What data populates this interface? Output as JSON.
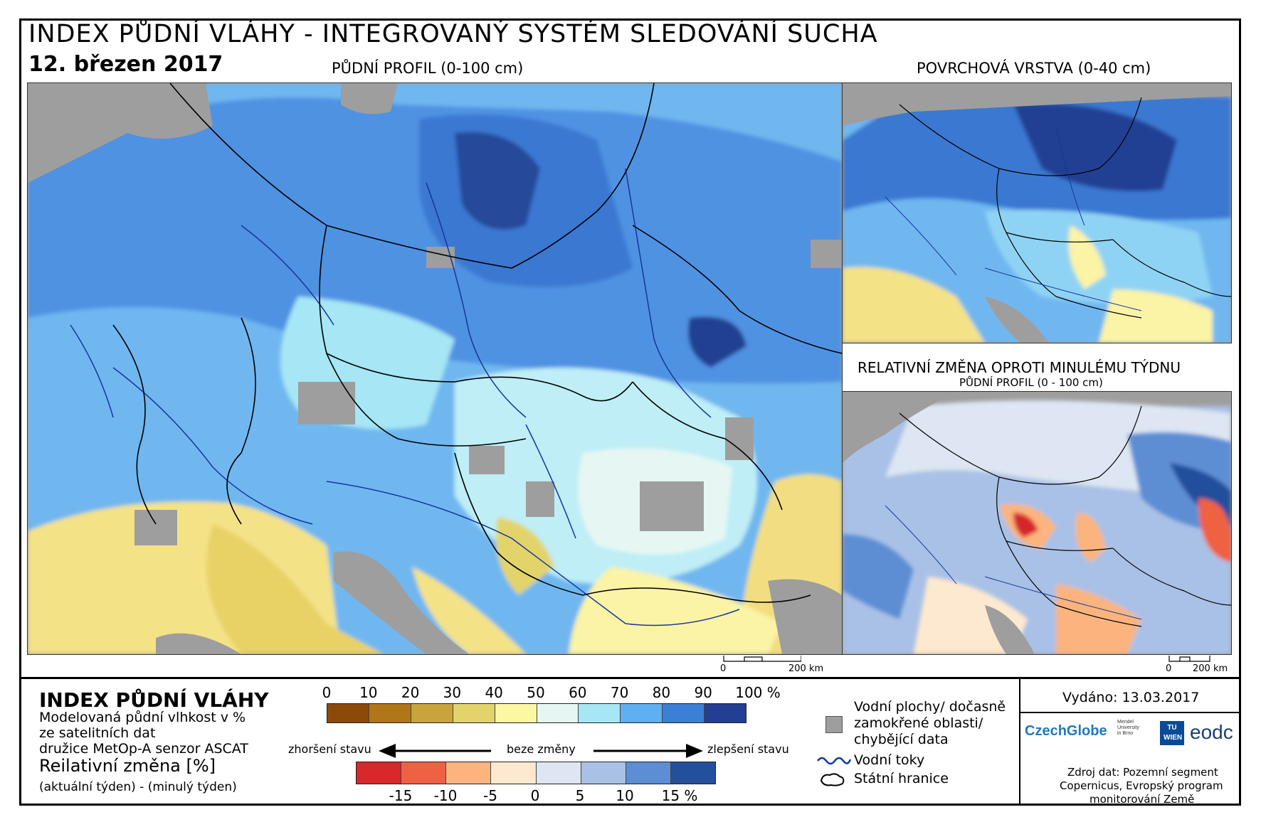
{
  "header": {
    "title": "INDEX PŮDNÍ VLÁHY - INTEGROVANÝ SYSTÉM SLEDOVÁNÍ SUCHA",
    "date": "12. březen 2017"
  },
  "maps": {
    "main_label": "PŮDNÍ PROFIL (0-100 cm)",
    "surface_label": "POVRCHOVÁ VRSTVA (0-40 cm)",
    "change_label": "RELATIVNÍ ZMĚNA OPROTI MINULÉMU TÝDNU",
    "change_sublabel": "PŮDNÍ PROFIL (0 - 100 cm)",
    "scale_main": {
      "zero": "0",
      "distance": "200 km"
    },
    "scale_change": {
      "zero": "0",
      "distance": "200 km"
    }
  },
  "legend": {
    "title": "INDEX PŮDNÍ VLÁHY",
    "desc_line1": "Modelovaná půdní vlhkost v %",
    "desc_line2": "ze satelitních dat",
    "desc_line3": "družice MetOp-A senzor ASCAT",
    "change_title": "Reilativní změna [%]",
    "change_desc": "(aktuální týden) - (minulý týden)",
    "index_ticks": [
      "0",
      "10",
      "20",
      "30",
      "40",
      "50",
      "60",
      "70",
      "80",
      "90",
      "100 %"
    ],
    "index_colors": [
      "#8b4a0a",
      "#b07718",
      "#c9a43b",
      "#e2d46b",
      "#fbf7a3",
      "#e6f7f3",
      "#a6e6f5",
      "#5eb0f2",
      "#3b7fd6",
      "#233f93"
    ],
    "change_ticks": [
      "-15",
      "-10",
      "-5",
      "0",
      "5",
      "10",
      "15 %"
    ],
    "change_colors": [
      "#d7282b",
      "#ee6243",
      "#fbb47d",
      "#fde9cf",
      "#dde6f2",
      "#a9c1e6",
      "#5d8ed4",
      "#244f9b"
    ],
    "worse_label": "zhoršení stavu",
    "nochange_label": "beze změny",
    "better_label": "zlepšení stavu",
    "water_line1": "Vodní plochy/ dočasně",
    "water_line2": "zamokřené oblasti/",
    "water_line3": "chybějící data",
    "rivers_label": "Vodní toky",
    "borders_label": "Státní hranice"
  },
  "footer": {
    "issued": "Vydáno: 13.03.2017",
    "source_line1": "Zdroj dat: Pozemní segment",
    "source_line2": "Copernicus, Evropský program",
    "source_line3": "monitorování Země",
    "logos": {
      "czechglobe": "CzechGlobe",
      "mendel": "Mendel University in Brno",
      "tu": "TU WIEN",
      "eodc": "eodc"
    }
  }
}
